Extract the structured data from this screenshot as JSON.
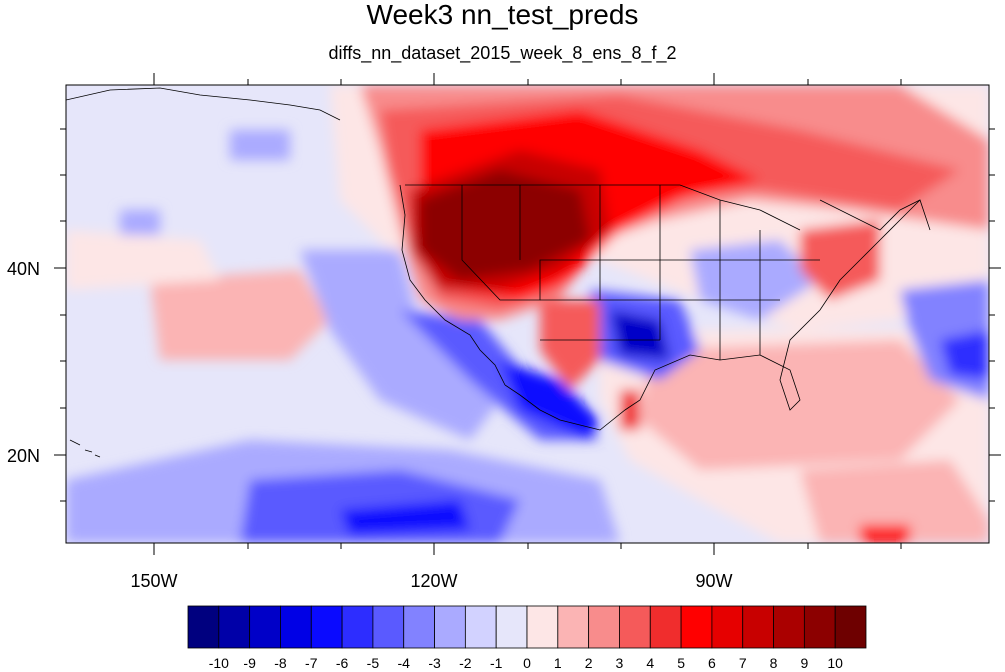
{
  "title": "Week3 nn_test_preds",
  "subtitle": "diffs_nn_dataset_2015_week_8_ens_8_f_2",
  "axes": {
    "lon_labels": [
      "150W",
      "120W",
      "90W"
    ],
    "lat_labels": [
      "40N",
      "20N"
    ]
  },
  "colorbar": {
    "labels": [
      "-10",
      "-9",
      "-8",
      "-7",
      "-6",
      "-5",
      "-4",
      "-3",
      "-2",
      "-1",
      "0",
      "1",
      "2",
      "3",
      "4",
      "5",
      "6",
      "7",
      "8",
      "9",
      "10"
    ],
    "colors": [
      "#00007f",
      "#0000a8",
      "#0000c8",
      "#0000e6",
      "#0a0aff",
      "#2d2dff",
      "#5a5aff",
      "#8282ff",
      "#aaaaff",
      "#d2d2ff",
      "#e6e6fa",
      "#fde6e6",
      "#fbb4b4",
      "#f88c8c",
      "#f55a5a",
      "#f02d2d",
      "#ff0000",
      "#e60000",
      "#c80000",
      "#aa0000",
      "#8c0000",
      "#6e0000"
    ]
  }
}
